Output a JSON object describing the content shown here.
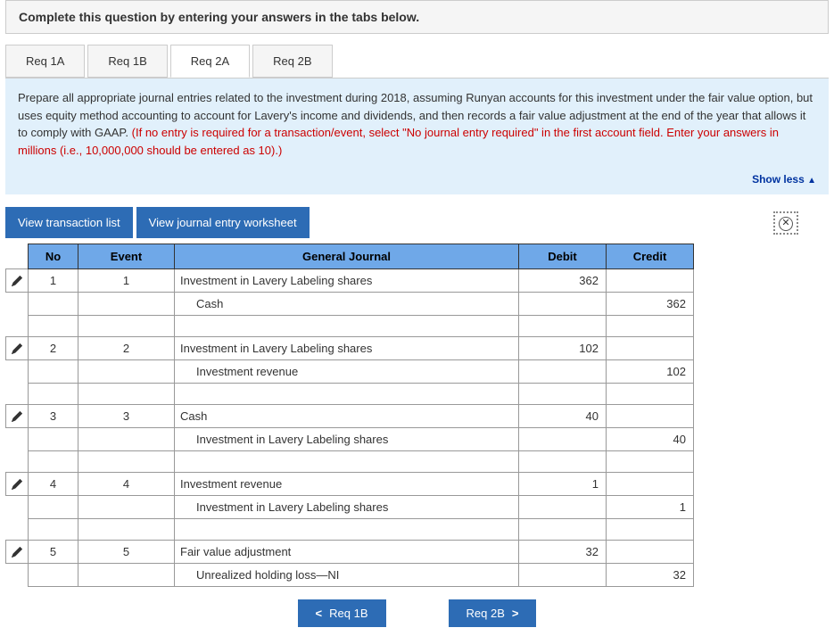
{
  "header": {
    "text": "Complete this question by entering your answers in the tabs below."
  },
  "tabs": [
    {
      "label": "Req 1A",
      "active": false
    },
    {
      "label": "Req 1B",
      "active": false
    },
    {
      "label": "Req 2A",
      "active": true
    },
    {
      "label": "Req 2B",
      "active": false
    }
  ],
  "instructions": {
    "black": "Prepare all appropriate journal entries related to the investment during 2018, assuming Runyan accounts for this investment under the fair value option, but uses equity method accounting to account for Lavery's income and dividends, and then records a fair value adjustment at the end of the year that allows it to comply with GAAP. ",
    "red": "(If no entry is required for a transaction/event, select \"No journal entry required\" in the first account field. Enter your answers in millions (i.e., 10,000,000 should be entered as 10).)"
  },
  "show_less": "Show less",
  "view_buttons": {
    "transaction_list": "View transaction list",
    "worksheet": "View journal entry worksheet"
  },
  "table": {
    "headers": {
      "no": "No",
      "event": "Event",
      "gj": "General Journal",
      "debit": "Debit",
      "credit": "Credit"
    },
    "entries": [
      {
        "no": "1",
        "event": "1",
        "lines": [
          {
            "account": "Investment in Lavery Labeling shares",
            "debit": "362",
            "credit": "",
            "indent": false
          },
          {
            "account": "Cash",
            "debit": "",
            "credit": "362",
            "indent": true
          }
        ]
      },
      {
        "no": "2",
        "event": "2",
        "lines": [
          {
            "account": "Investment in Lavery Labeling shares",
            "debit": "102",
            "credit": "",
            "indent": false
          },
          {
            "account": "Investment revenue",
            "debit": "",
            "credit": "102",
            "indent": true
          }
        ]
      },
      {
        "no": "3",
        "event": "3",
        "lines": [
          {
            "account": "Cash",
            "debit": "40",
            "credit": "",
            "indent": false
          },
          {
            "account": "Investment in Lavery Labeling shares",
            "debit": "",
            "credit": "40",
            "indent": true
          }
        ]
      },
      {
        "no": "4",
        "event": "4",
        "lines": [
          {
            "account": "Investment revenue",
            "debit": "1",
            "credit": "",
            "indent": false
          },
          {
            "account": "Investment in Lavery Labeling shares",
            "debit": "",
            "credit": "1",
            "indent": true
          }
        ]
      },
      {
        "no": "5",
        "event": "5",
        "lines": [
          {
            "account": "Fair value adjustment",
            "debit": "32",
            "credit": "",
            "indent": false
          },
          {
            "account": "Unrealized holding loss—NI",
            "debit": "",
            "credit": "32",
            "indent": true
          }
        ]
      }
    ]
  },
  "nav": {
    "prev": "Req 1B",
    "next": "Req 2B"
  },
  "colors": {
    "tab_bg": "#f5f5f5",
    "instr_bg": "#e1f0fb",
    "btn_bg": "#2d6cb5",
    "th_bg": "#6fa8e8",
    "red": "#c00",
    "link": "#0033a0"
  }
}
